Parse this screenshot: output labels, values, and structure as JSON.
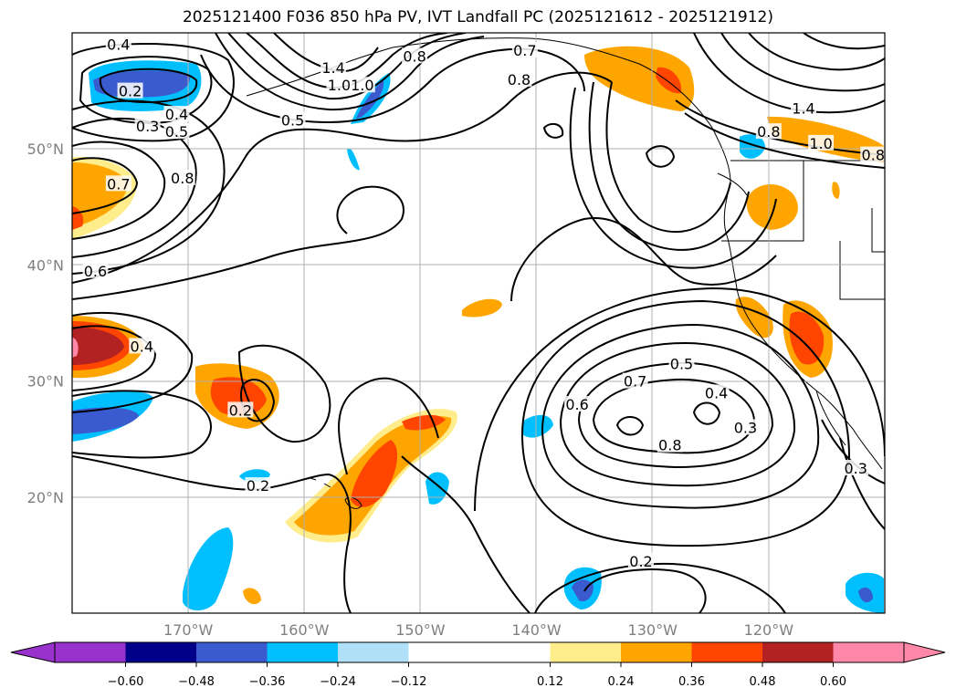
{
  "title": "2025121400 F036 850 hPa PV, IVT Landfall PC (2025121612 - 2025121912)",
  "map": {
    "lon_min": -180,
    "lon_max": -110,
    "lat_min": 10,
    "lat_max": 60,
    "lon_ticks": [
      {
        "value": -170,
        "label": "170°W"
      },
      {
        "value": -160,
        "label": "160°W"
      },
      {
        "value": -150,
        "label": "150°W"
      },
      {
        "value": -140,
        "label": "140°W"
      },
      {
        "value": -130,
        "label": "130°W"
      },
      {
        "value": -120,
        "label": "120°W"
      }
    ],
    "lat_ticks": [
      {
        "value": 50,
        "label": "50°N"
      },
      {
        "value": 40,
        "label": "40°N"
      },
      {
        "value": 30,
        "label": "30°N"
      },
      {
        "value": 20,
        "label": "20°N"
      }
    ],
    "gridlines": true
  },
  "colorbar": {
    "colors": {
      "below": "#9932cc",
      "bins": [
        "#9932cc",
        "#00008b",
        "#3a5bd0",
        "#00bfff",
        "#b0e0f8",
        "#ffffff",
        "#ffec8b",
        "#ffa500",
        "#ff4500",
        "#b22222",
        "#ff88a8"
      ],
      "above": "#ff88a8"
    },
    "levels": [
      -0.72,
      -0.6,
      -0.48,
      -0.36,
      -0.24,
      -0.12,
      0.12,
      0.24,
      0.36,
      0.48,
      0.6,
      0.72
    ],
    "tick_labels": [
      "−0.60",
      "−0.48",
      "−0.36",
      "−0.24",
      "−0.12",
      "0.12",
      "0.24",
      "0.36",
      "0.48",
      "0.60"
    ]
  },
  "contour_labels": [
    {
      "text": "0.4",
      "lon": -176,
      "lat": 59
    },
    {
      "text": "0.2",
      "lon": -175,
      "lat": 55
    },
    {
      "text": "0.3",
      "lon": -173.5,
      "lat": 52
    },
    {
      "text": "0.4",
      "lon": -171,
      "lat": 53
    },
    {
      "text": "0.5",
      "lon": -171,
      "lat": 51.5
    },
    {
      "text": "0.8",
      "lon": -170.5,
      "lat": 47.5
    },
    {
      "text": "0.7",
      "lon": -176,
      "lat": 47
    },
    {
      "text": "0.6",
      "lon": -178,
      "lat": 39.5
    },
    {
      "text": "1.4",
      "lon": -157.5,
      "lat": 57
    },
    {
      "text": "1.0",
      "lon": -157,
      "lat": 55.5
    },
    {
      "text": "1.0",
      "lon": -155,
      "lat": 55.5
    },
    {
      "text": "0.8",
      "lon": -150.5,
      "lat": 58
    },
    {
      "text": "0.5",
      "lon": -161,
      "lat": 52.5
    },
    {
      "text": "0.7",
      "lon": -141,
      "lat": 58.5
    },
    {
      "text": "0.8",
      "lon": -141.5,
      "lat": 56
    },
    {
      "text": "1.4",
      "lon": -117,
      "lat": 53.5
    },
    {
      "text": "0.8",
      "lon": -120,
      "lat": 51.5
    },
    {
      "text": "1.0",
      "lon": -115.5,
      "lat": 50.5
    },
    {
      "text": "0.8",
      "lon": -111,
      "lat": 49.5
    },
    {
      "text": "0.4",
      "lon": -174,
      "lat": 33
    },
    {
      "text": "0.2",
      "lon": -165.5,
      "lat": 27.5
    },
    {
      "text": "0.2",
      "lon": -164,
      "lat": 21
    },
    {
      "text": "0.5",
      "lon": -127.5,
      "lat": 31.5
    },
    {
      "text": "0.7",
      "lon": -131.5,
      "lat": 30
    },
    {
      "text": "0.6",
      "lon": -136.5,
      "lat": 28
    },
    {
      "text": "0.4",
      "lon": -124.5,
      "lat": 29
    },
    {
      "text": "0.3",
      "lon": -122,
      "lat": 26
    },
    {
      "text": "0.8",
      "lon": -128.5,
      "lat": 24.5
    },
    {
      "text": "0.3",
      "lon": -112.5,
      "lat": 22.5
    },
    {
      "text": "0.2",
      "lon": -131,
      "lat": 14.5
    }
  ]
}
